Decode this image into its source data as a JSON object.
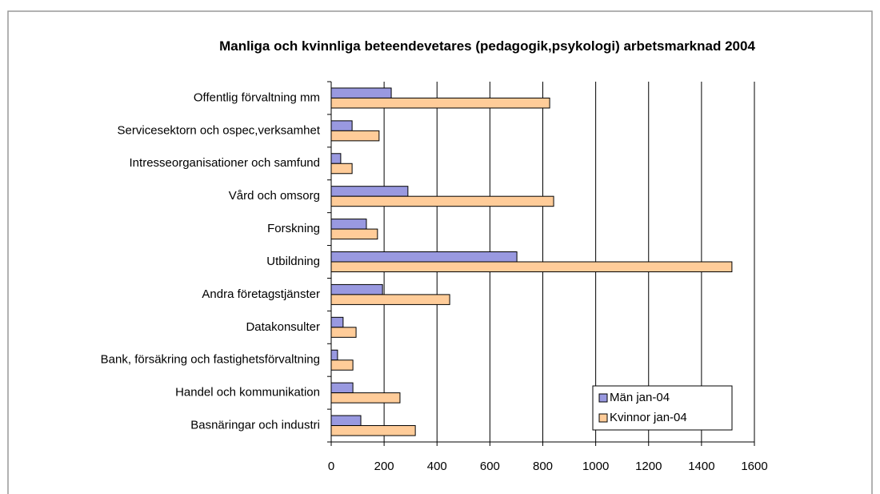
{
  "chart_data": {
    "type": "bar",
    "orientation": "horizontal",
    "title": "Manliga och kvinnliga beteendevetares (pedagogik,psykologi) arbetsmarknad 2004",
    "categories": [
      "Offentlig förvaltning mm",
      "Servicesektorn och ospec,verksamhet",
      "Intresseorganisationer och samfund",
      "Vård och omsorg",
      "Forskning",
      "Utbildning",
      "Andra företagstjänster",
      "Datakonsulter",
      "Bank, försäkring och fastighetsförvaltning",
      "Handel och kommunikation",
      "Basnäringar och industri"
    ],
    "series": [
      {
        "name": "Män jan-04",
        "color": "#9999e0",
        "values": [
          227,
          79,
          36,
          290,
          133,
          702,
          194,
          45,
          24,
          82,
          112
        ]
      },
      {
        "name": "Kvinnor jan-04",
        "color": "#ffcc99",
        "values": [
          826,
          181,
          79,
          841,
          175,
          1515,
          448,
          94,
          82,
          260,
          318
        ]
      }
    ],
    "xlim": [
      0,
      1600
    ],
    "xticks": [
      0,
      200,
      400,
      600,
      800,
      1000,
      1200,
      1400,
      1600
    ],
    "grid": true,
    "legend": "lower right"
  }
}
